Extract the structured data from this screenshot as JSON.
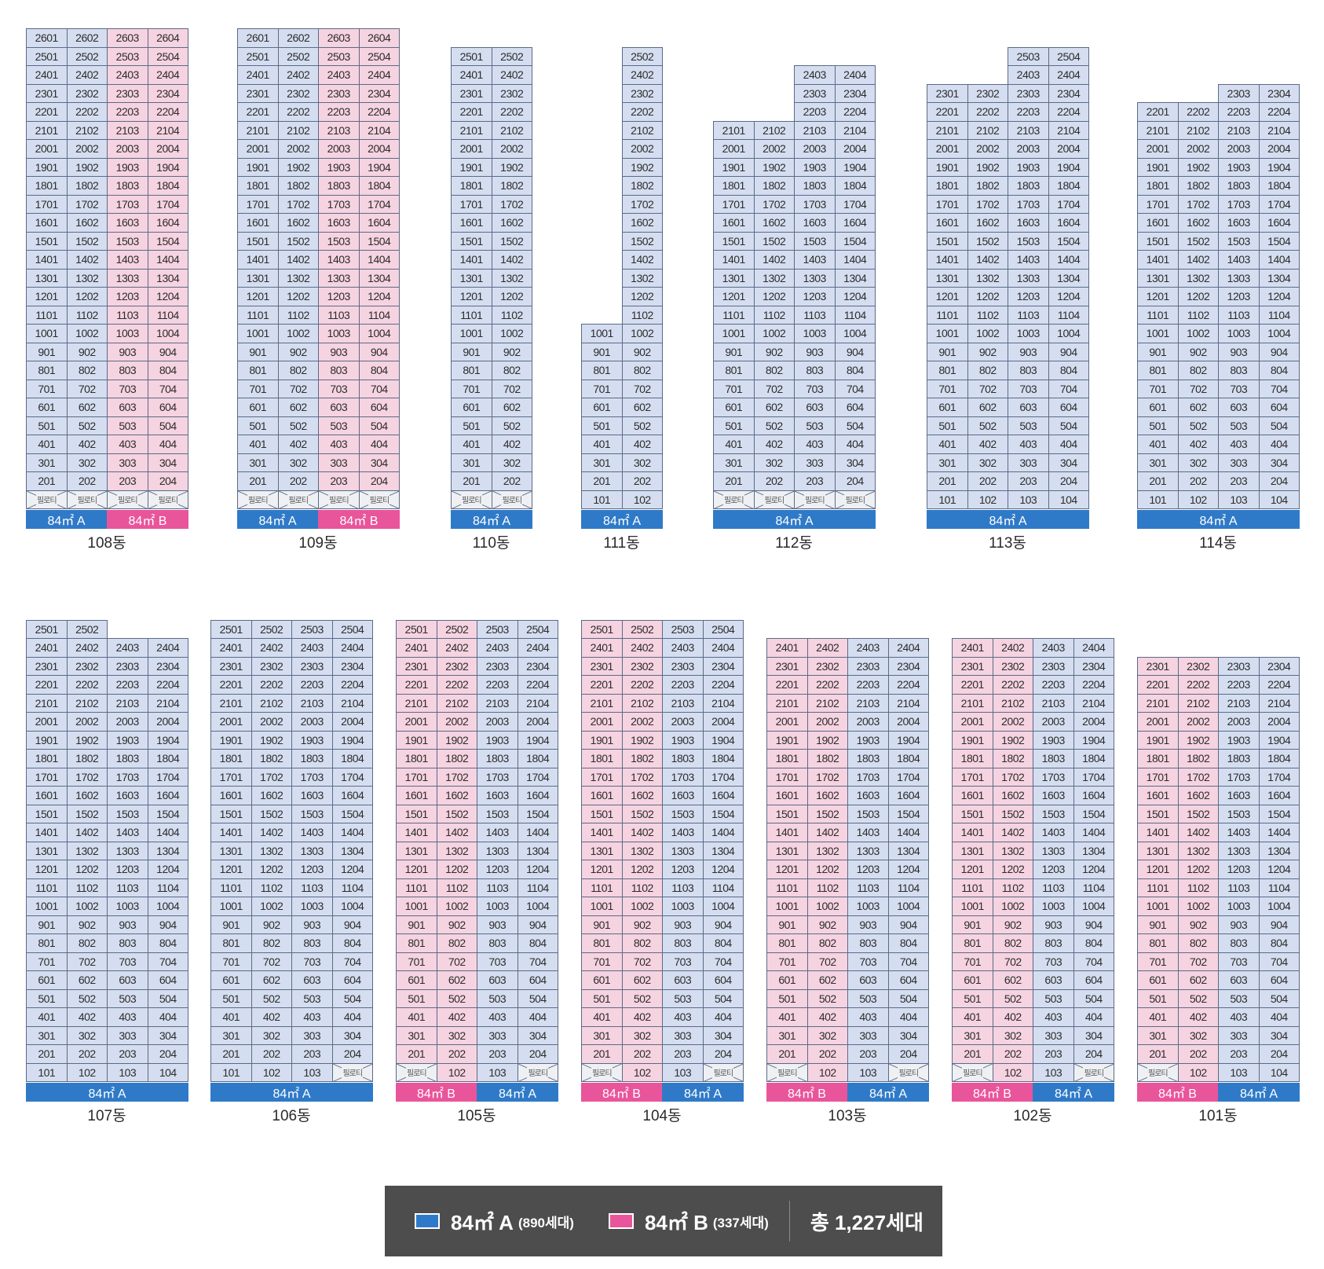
{
  "colors": {
    "type_A": "#2f7ac8",
    "type_B": "#e9559a",
    "cell_A": "#d5def0",
    "cell_B": "#f6d3e0"
  },
  "type_labels": {
    "A": "84㎡ A",
    "B": "84㎡ B"
  },
  "pilotis_label": "필로티",
  "buildings": [
    {
      "name": "108동",
      "floors": [
        2,
        26
      ],
      "columns": [
        {
          "line": 1,
          "type": "A",
          "top": 26,
          "pilotis": true
        },
        {
          "line": 2,
          "type": "A",
          "top": 26,
          "pilotis": true
        },
        {
          "line": 3,
          "type": "B",
          "top": 26,
          "pilotis": true
        },
        {
          "line": 4,
          "type": "B",
          "top": 26,
          "pilotis": true
        }
      ],
      "segments": [
        {
          "type": "A",
          "label": "84㎡ A",
          "span": 2
        },
        {
          "type": "B",
          "label": "84㎡ B",
          "span": 2
        }
      ]
    },
    {
      "name": "109동",
      "floors": [
        2,
        26
      ],
      "columns": [
        {
          "line": 1,
          "type": "A",
          "top": 26,
          "pilotis": true
        },
        {
          "line": 2,
          "type": "A",
          "top": 26,
          "pilotis": true
        },
        {
          "line": 3,
          "type": "B",
          "top": 26,
          "pilotis": true
        },
        {
          "line": 4,
          "type": "B",
          "top": 26,
          "pilotis": true
        }
      ],
      "segments": [
        {
          "type": "A",
          "label": "84㎡ A",
          "span": 2
        },
        {
          "type": "B",
          "label": "84㎡ B",
          "span": 2
        }
      ]
    },
    {
      "name": "110동",
      "floors": [
        2,
        25
      ],
      "columns": [
        {
          "line": 1,
          "type": "A",
          "top": 25,
          "pilotis": true
        },
        {
          "line": 2,
          "type": "A",
          "top": 25,
          "pilotis": true
        }
      ],
      "segments": [
        {
          "type": "A",
          "label": "84㎡ A",
          "span": 2
        }
      ]
    },
    {
      "name": "111동",
      "floors": [
        1,
        25
      ],
      "columns": [
        {
          "line": 1,
          "type": "A",
          "top": 10,
          "pilotis": false
        },
        {
          "line": 2,
          "type": "A",
          "top": 25,
          "pilotis": false
        }
      ],
      "segments": [
        {
          "type": "A",
          "label": "84㎡ A",
          "span": 2
        }
      ]
    },
    {
      "name": "112동",
      "floors": [
        2,
        24
      ],
      "columns": [
        {
          "line": 1,
          "type": "A",
          "top": 21,
          "pilotis": true
        },
        {
          "line": 2,
          "type": "A",
          "top": 21,
          "pilotis": true
        },
        {
          "line": 3,
          "type": "A",
          "top": 24,
          "pilotis": true
        },
        {
          "line": 4,
          "type": "A",
          "top": 24,
          "pilotis": true
        }
      ],
      "segments": [
        {
          "type": "A",
          "label": "84㎡ A",
          "span": 4
        }
      ]
    },
    {
      "name": "113동",
      "floors": [
        1,
        25
      ],
      "columns": [
        {
          "line": 1,
          "type": "A",
          "top": 23,
          "pilotis": false
        },
        {
          "line": 2,
          "type": "A",
          "top": 23,
          "pilotis": false
        },
        {
          "line": 3,
          "type": "A",
          "top": 25,
          "pilotis": false
        },
        {
          "line": 4,
          "type": "A",
          "top": 25,
          "pilotis": false
        }
      ],
      "segments": [
        {
          "type": "A",
          "label": "84㎡ A",
          "span": 4
        }
      ]
    },
    {
      "name": "114동",
      "floors": [
        1,
        23
      ],
      "columns": [
        {
          "line": 1,
          "type": "A",
          "top": 22,
          "pilotis": false
        },
        {
          "line": 2,
          "type": "A",
          "top": 22,
          "pilotis": false
        },
        {
          "line": 3,
          "type": "A",
          "top": 23,
          "pilotis": false
        },
        {
          "line": 4,
          "type": "A",
          "top": 23,
          "pilotis": false
        }
      ],
      "segments": [
        {
          "type": "A",
          "label": "84㎡ A",
          "span": 4
        }
      ]
    },
    {
      "name": "107동",
      "floors": [
        1,
        25
      ],
      "columns": [
        {
          "line": 1,
          "type": "A",
          "top": 25,
          "pilotis": false
        },
        {
          "line": 2,
          "type": "A",
          "top": 25,
          "pilotis": false
        },
        {
          "line": 3,
          "type": "A",
          "top": 24,
          "pilotis": false
        },
        {
          "line": 4,
          "type": "A",
          "top": 24,
          "pilotis": false
        }
      ],
      "segments": [
        {
          "type": "A",
          "label": "84㎡ A",
          "span": 4
        }
      ]
    },
    {
      "name": "106동",
      "floors": [
        1,
        25
      ],
      "columns": [
        {
          "line": 1,
          "type": "A",
          "top": 25,
          "pilotis": false
        },
        {
          "line": 2,
          "type": "A",
          "top": 25,
          "pilotis": false
        },
        {
          "line": 3,
          "type": "A",
          "top": 25,
          "pilotis": false
        },
        {
          "line": 4,
          "type": "A",
          "top": 25,
          "pilotis": true
        }
      ],
      "segments": [
        {
          "type": "A",
          "label": "84㎡ A",
          "span": 4
        }
      ]
    },
    {
      "name": "105동",
      "floors": [
        1,
        25
      ],
      "columns": [
        {
          "line": 1,
          "type": "B",
          "top": 25,
          "pilotis": true
        },
        {
          "line": 2,
          "type": "B",
          "top": 25,
          "pilotis": false
        },
        {
          "line": 3,
          "type": "A",
          "top": 25,
          "pilotis": false
        },
        {
          "line": 4,
          "type": "A",
          "top": 25,
          "pilotis": true
        }
      ],
      "segments": [
        {
          "type": "B",
          "label": "84㎡ B",
          "span": 2
        },
        {
          "type": "A",
          "label": "84㎡ A",
          "span": 2
        }
      ]
    },
    {
      "name": "104동",
      "floors": [
        1,
        25
      ],
      "columns": [
        {
          "line": 1,
          "type": "B",
          "top": 25,
          "pilotis": true
        },
        {
          "line": 2,
          "type": "B",
          "top": 25,
          "pilotis": false
        },
        {
          "line": 3,
          "type": "A",
          "top": 25,
          "pilotis": false
        },
        {
          "line": 4,
          "type": "A",
          "top": 25,
          "pilotis": true
        }
      ],
      "segments": [
        {
          "type": "B",
          "label": "84㎡ B",
          "span": 2
        },
        {
          "type": "A",
          "label": "84㎡ A",
          "span": 2
        }
      ]
    },
    {
      "name": "103동",
      "floors": [
        1,
        24
      ],
      "columns": [
        {
          "line": 1,
          "type": "B",
          "top": 24,
          "pilotis": true
        },
        {
          "line": 2,
          "type": "B",
          "top": 24,
          "pilotis": false
        },
        {
          "line": 3,
          "type": "A",
          "top": 24,
          "pilotis": false
        },
        {
          "line": 4,
          "type": "A",
          "top": 24,
          "pilotis": true
        }
      ],
      "segments": [
        {
          "type": "B",
          "label": "84㎡ B",
          "span": 2
        },
        {
          "type": "A",
          "label": "84㎡ A",
          "span": 2
        }
      ]
    },
    {
      "name": "102동",
      "floors": [
        1,
        24
      ],
      "columns": [
        {
          "line": 1,
          "type": "B",
          "top": 24,
          "pilotis": true
        },
        {
          "line": 2,
          "type": "B",
          "top": 24,
          "pilotis": false
        },
        {
          "line": 3,
          "type": "A",
          "top": 24,
          "pilotis": false
        },
        {
          "line": 4,
          "type": "A",
          "top": 24,
          "pilotis": true
        }
      ],
      "segments": [
        {
          "type": "B",
          "label": "84㎡ B",
          "span": 2
        },
        {
          "type": "A",
          "label": "84㎡ A",
          "span": 2
        }
      ]
    },
    {
      "name": "101동",
      "floors": [
        1,
        23
      ],
      "columns": [
        {
          "line": 1,
          "type": "B",
          "top": 23,
          "pilotis": true
        },
        {
          "line": 2,
          "type": "B",
          "top": 23,
          "pilotis": false
        },
        {
          "line": 3,
          "type": "A",
          "top": 23,
          "pilotis": false
        },
        {
          "line": 4,
          "type": "A",
          "top": 23,
          "pilotis": false
        }
      ],
      "segments": [
        {
          "type": "B",
          "label": "84㎡ B",
          "span": 2
        },
        {
          "type": "A",
          "label": "84㎡ A",
          "span": 2
        }
      ]
    }
  ],
  "legend": {
    "a_label": "84㎡ A",
    "a_count": "(890세대)",
    "b_label": "84㎡ B",
    "b_count": "(337세대)",
    "total": "총 1,227세대"
  }
}
